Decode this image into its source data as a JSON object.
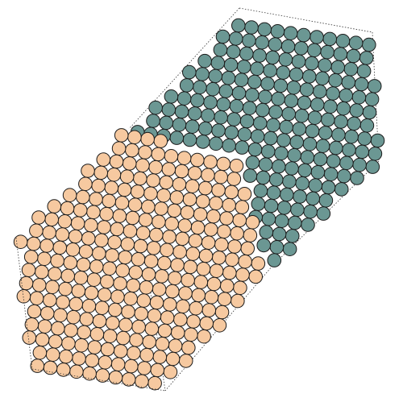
{
  "view": {
    "description_visible_text": ""
  },
  "structure": {
    "type": "crystal-lattice-interface",
    "phases": [
      {
        "name": "",
        "color": "#f6c9a0"
      },
      {
        "name": "",
        "color": "#6b9793"
      }
    ],
    "bounding_box": "dotted-parallelepiped"
  }
}
